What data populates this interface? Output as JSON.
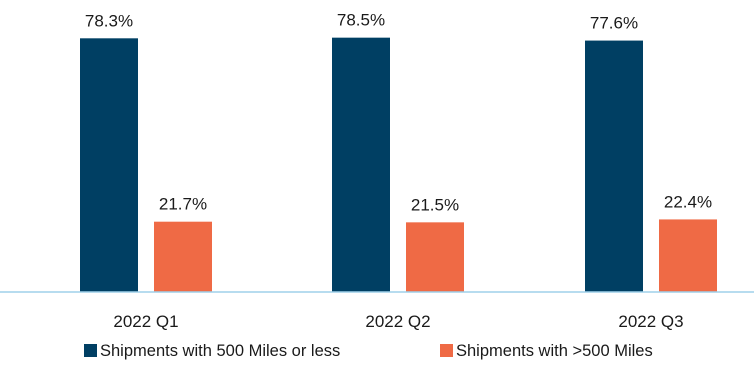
{
  "chart_data": {
    "type": "bar",
    "title": "",
    "xlabel": "",
    "ylabel": "",
    "categories": [
      "2022 Q1",
      "2022 Q2",
      "2022 Q3"
    ],
    "series": [
      {
        "name": "Shipments with 500 Miles or less",
        "color": "#003f63",
        "values": [
          78.3,
          78.5,
          77.6
        ],
        "labels": [
          "78.3%",
          "78.5%",
          "77.6%"
        ]
      },
      {
        "name": "Shipments with >500 Miles",
        "color": "#ef6a45",
        "values": [
          21.7,
          21.5,
          22.4
        ],
        "labels": [
          "21.7%",
          "21.5%",
          "22.4%"
        ]
      }
    ],
    "ylim": [
      0,
      100
    ],
    "grid": false,
    "y_axis_visible": false,
    "legend_position": "bottom",
    "baseline_color": "#9fd0ea",
    "label_color": "#1a1a1a"
  }
}
